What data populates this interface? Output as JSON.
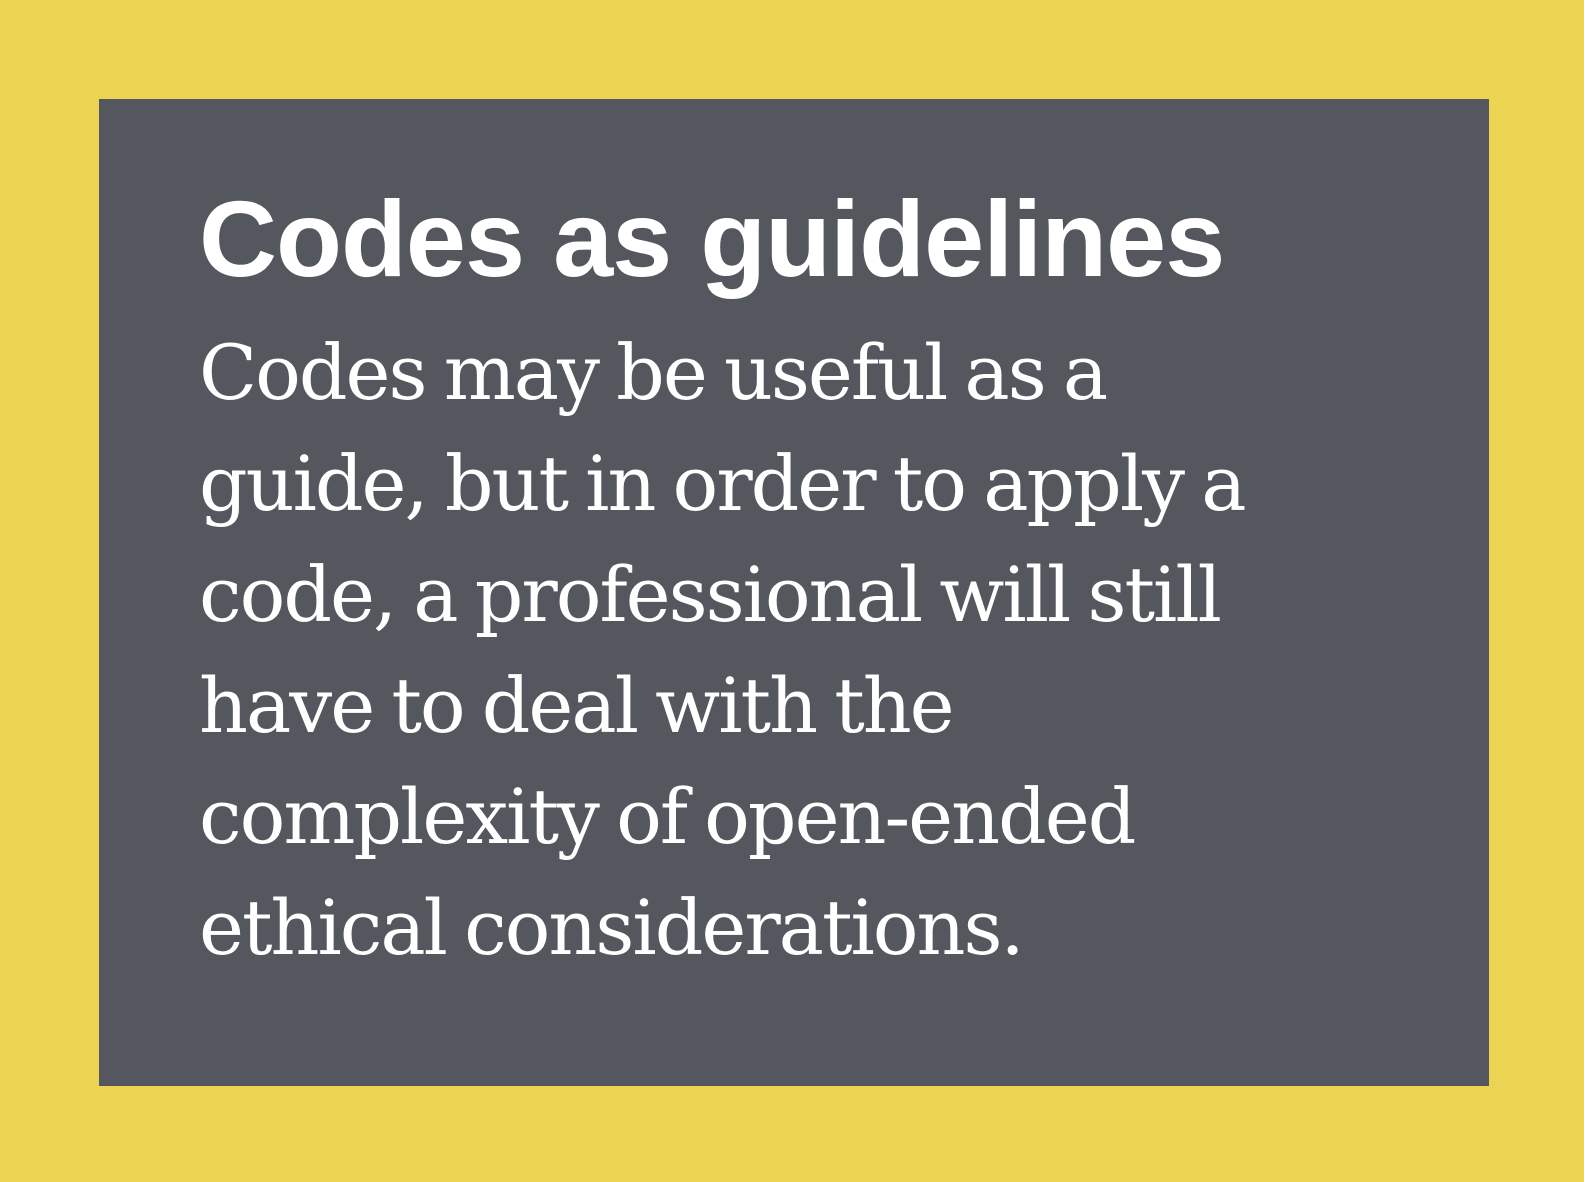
{
  "colors": {
    "background": "#ecd452",
    "card": "#55575e",
    "text": "#ffffff"
  },
  "card": {
    "title": "Codes as guidelines",
    "body": "Codes may be useful as a guide, but in order to apply a code, a professional will still have to deal with the complexity of open-ended ethical considerations."
  }
}
